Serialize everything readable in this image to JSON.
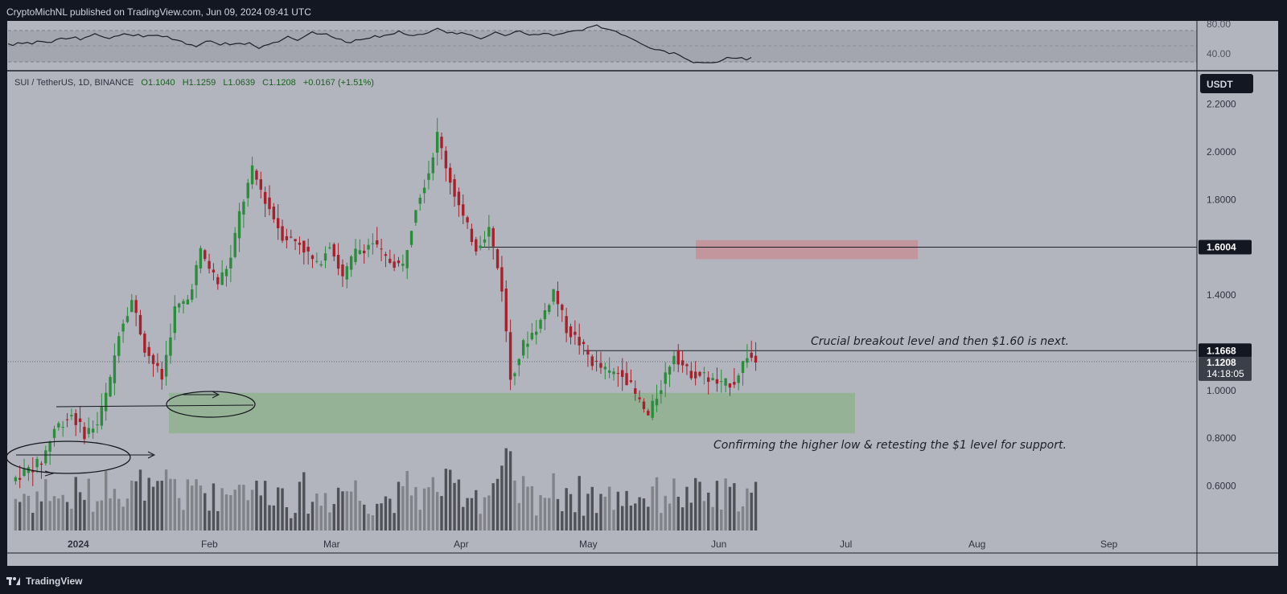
{
  "header": {
    "publisher": "CryptoMichNL published on TradingView.com, Jun 09, 2024 09:41 UTC"
  },
  "footer": {
    "brand": "TradingView"
  },
  "legend": {
    "symbol": "SUI / TetherUS, 1D, BINANCE",
    "open": "O1.1040",
    "high": "H1.1259",
    "low": "L1.0639",
    "close": "C1.1208",
    "change": "+0.0167 (+1.51%)"
  },
  "colors": {
    "background": "#b2b5be",
    "up": "#2e8b3e",
    "down": "#a3232d",
    "support_zone": "#8fb08f",
    "target_zone": "#c49097"
  },
  "rsi": {
    "ticks": [
      "80.00",
      "40.00"
    ]
  },
  "price_axis": {
    "currency": "USDT",
    "ticks": [
      "2.2000",
      "2.0000",
      "1.8000",
      "1.4000",
      "1.0000",
      "0.8000",
      "0.6000"
    ],
    "level_breakout": "1.1668",
    "level_target": "1.6004",
    "last_price": "1.1208",
    "countdown": "14:18:05"
  },
  "time_axis": {
    "labels": [
      "2024",
      "Feb",
      "Mar",
      "Apr",
      "May",
      "Jun",
      "Jul",
      "Aug",
      "Sep"
    ]
  },
  "annotations": {
    "breakout_note": "Crucial breakout level and then $1.60 is next.",
    "support_note": "Confirming the higher low & retesting the $1 level for support."
  },
  "chart_data": {
    "type": "candlestick",
    "symbol": "SUI / TetherUS",
    "interval": "1D",
    "exchange": "BINANCE",
    "ylim": [
      0.42,
      2.36
    ],
    "y_ticks": [
      0.6,
      0.8,
      1.0,
      1.4,
      1.8,
      2.0,
      2.2
    ],
    "horizontal_levels": [
      1.1668,
      1.6004
    ],
    "support_zone": [
      0.82,
      0.99
    ],
    "target_zone": [
      1.55,
      1.63
    ],
    "ohlc_anchor_closes": [
      [
        "2023-12-19",
        0.62
      ],
      [
        "2023-12-22",
        0.66
      ],
      [
        "2023-12-26",
        0.7
      ],
      [
        "2023-12-29",
        0.84
      ],
      [
        "2024-01-02",
        0.9
      ],
      [
        "2024-01-05",
        0.82
      ],
      [
        "2024-01-08",
        0.86
      ],
      [
        "2024-01-11",
        1.04
      ],
      [
        "2024-01-13",
        1.25
      ],
      [
        "2024-01-16",
        1.38
      ],
      [
        "2024-01-19",
        1.18
      ],
      [
        "2024-01-23",
        1.05
      ],
      [
        "2024-01-26",
        1.34
      ],
      [
        "2024-01-29",
        1.38
      ],
      [
        "2024-02-01",
        1.58
      ],
      [
        "2024-02-05",
        1.45
      ],
      [
        "2024-02-08",
        1.55
      ],
      [
        "2024-02-10",
        1.74
      ],
      [
        "2024-02-13",
        1.92
      ],
      [
        "2024-02-16",
        1.8
      ],
      [
        "2024-02-20",
        1.65
      ],
      [
        "2024-02-24",
        1.62
      ],
      [
        "2024-02-28",
        1.52
      ],
      [
        "2024-03-02",
        1.62
      ],
      [
        "2024-03-05",
        1.47
      ],
      [
        "2024-03-08",
        1.58
      ],
      [
        "2024-03-12",
        1.62
      ],
      [
        "2024-03-15",
        1.55
      ],
      [
        "2024-03-19",
        1.52
      ],
      [
        "2024-03-22",
        1.78
      ],
      [
        "2024-03-25",
        1.92
      ],
      [
        "2024-03-27",
        2.07
      ],
      [
        "2024-03-30",
        1.88
      ],
      [
        "2024-04-02",
        1.72
      ],
      [
        "2024-04-05",
        1.6
      ],
      [
        "2024-04-08",
        1.68
      ],
      [
        "2024-04-11",
        1.43
      ],
      [
        "2024-04-13",
        1.05
      ],
      [
        "2024-04-16",
        1.19
      ],
      [
        "2024-04-20",
        1.29
      ],
      [
        "2024-04-23",
        1.42
      ],
      [
        "2024-04-26",
        1.26
      ],
      [
        "2024-04-29",
        1.2
      ],
      [
        "2024-05-02",
        1.12
      ],
      [
        "2024-05-06",
        1.07
      ],
      [
        "2024-05-09",
        1.08
      ],
      [
        "2024-05-12",
        0.98
      ],
      [
        "2024-05-15",
        0.89
      ],
      [
        "2024-05-18",
        1.02
      ],
      [
        "2024-05-21",
        1.16
      ],
      [
        "2024-05-24",
        1.08
      ],
      [
        "2024-05-28",
        1.06
      ],
      [
        "2024-06-01",
        1.02
      ],
      [
        "2024-06-04",
        1.04
      ],
      [
        "2024-06-07",
        1.15
      ],
      [
        "2024-06-09",
        1.1208
      ]
    ]
  }
}
